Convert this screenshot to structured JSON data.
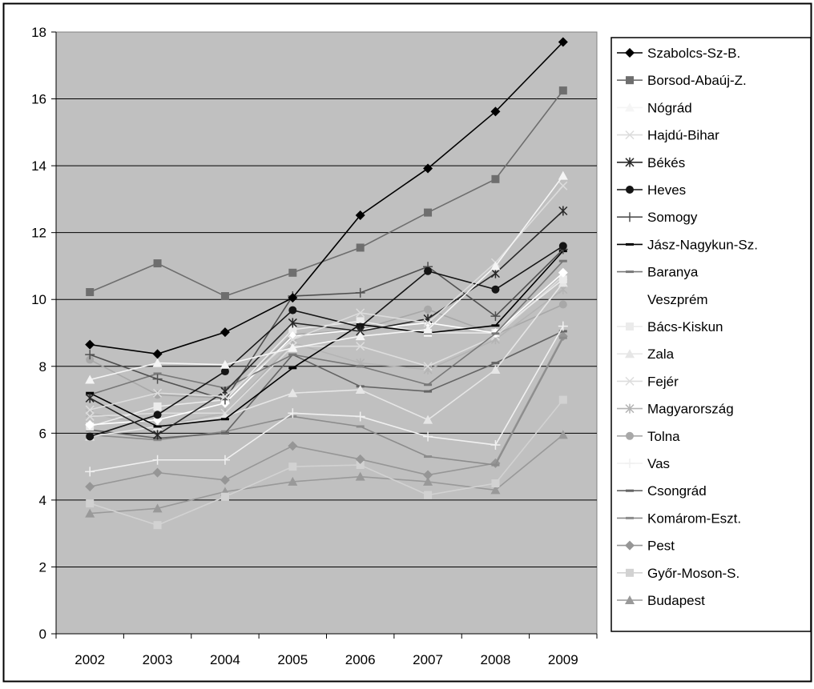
{
  "chart_data": {
    "type": "line",
    "title": "",
    "xlabel": "",
    "ylabel": "",
    "x": [
      "2002",
      "2003",
      "2004",
      "2005",
      "2006",
      "2007",
      "2008",
      "2009"
    ],
    "y_ticks": [
      "0",
      "2",
      "4",
      "6",
      "8",
      "10",
      "12",
      "14",
      "16",
      "18"
    ],
    "ylim": [
      0,
      18
    ],
    "grid": true,
    "legend": "right",
    "plot_background": "#c0c0c0",
    "series": [
      {
        "name": "Szabolcs-Sz-B.",
        "color": "#000000",
        "marker": "diamond",
        "values": [
          8.65,
          8.37,
          9.02,
          10.05,
          12.52,
          13.92,
          15.62,
          17.7
        ]
      },
      {
        "name": "Borsod-Abaúj-Z.",
        "color": "#6e6e6e",
        "marker": "square",
        "values": [
          10.22,
          11.08,
          10.1,
          10.8,
          11.55,
          12.6,
          13.6,
          16.25
        ]
      },
      {
        "name": "Nógrád",
        "color": "#f5f5f5",
        "marker": "triangle",
        "values": [
          7.6,
          8.1,
          8.05,
          8.55,
          8.9,
          9.1,
          11.0,
          13.7
        ]
      },
      {
        "name": "Hajdú-Bihar",
        "color": "#dcdcdc",
        "marker": "x",
        "values": [
          6.7,
          7.2,
          7.1,
          8.8,
          9.6,
          9.3,
          11.1,
          13.4
        ]
      },
      {
        "name": "Békés",
        "color": "#282828",
        "marker": "star",
        "values": [
          7.05,
          5.95,
          7.25,
          9.3,
          9.05,
          9.42,
          10.78,
          12.65
        ]
      },
      {
        "name": "Heves",
        "color": "#141414",
        "marker": "circle",
        "values": [
          5.9,
          6.55,
          7.85,
          9.68,
          9.18,
          10.85,
          10.3,
          11.6
        ]
      },
      {
        "name": "Somogy",
        "color": "#505050",
        "marker": "plus",
        "values": [
          8.35,
          7.62,
          7.0,
          10.1,
          10.2,
          10.98,
          9.5,
          11.5
        ]
      },
      {
        "name": "Jász-Nagykun-Sz.",
        "color": "#000000",
        "marker": "dash",
        "values": [
          7.2,
          6.2,
          6.42,
          7.95,
          9.25,
          9.0,
          9.22,
          11.45
        ]
      },
      {
        "name": "Baranya",
        "color": "#787878",
        "marker": "dash",
        "values": [
          7.15,
          7.78,
          7.35,
          8.35,
          8.0,
          7.45,
          8.98,
          11.15
        ]
      },
      {
        "name": "Veszprém",
        "color": "#ffffff",
        "marker": "diamond",
        "values": [
          6.25,
          6.4,
          6.9,
          8.9,
          9.1,
          9.3,
          9.0,
          10.8
        ]
      },
      {
        "name": "Bács-Kiskun",
        "color": "#ebebeb",
        "marker": "square",
        "values": [
          6.2,
          6.8,
          7.0,
          9.1,
          9.35,
          9.0,
          9.0,
          10.6
        ]
      },
      {
        "name": "Zala",
        "color": "#e6e6e6",
        "marker": "triangle",
        "values": [
          5.9,
          6.2,
          6.5,
          7.2,
          7.3,
          6.4,
          7.9,
          10.5
        ]
      },
      {
        "name": "Fejér",
        "color": "#dddddd",
        "marker": "x",
        "values": [
          6.5,
          6.6,
          6.6,
          8.6,
          8.6,
          8.0,
          8.9,
          10.7
        ]
      },
      {
        "name": "Magyarország",
        "color": "#b4b4b4",
        "marker": "star",
        "values": [
          6.6,
          6.2,
          6.6,
          8.7,
          8.1,
          7.9,
          8.8,
          10.3
        ]
      },
      {
        "name": "Tolna",
        "color": "#a8a8a8",
        "marker": "circle",
        "values": [
          8.2,
          7.15,
          7.05,
          8.95,
          9.1,
          9.7,
          8.95,
          9.85
        ]
      },
      {
        "name": "Vas",
        "color": "#f0f0f0",
        "marker": "plus",
        "values": [
          4.85,
          5.2,
          5.2,
          6.6,
          6.5,
          5.9,
          5.65,
          9.2
        ]
      },
      {
        "name": "Csongrád",
        "color": "#646464",
        "marker": "dash",
        "values": [
          6.1,
          5.85,
          6.0,
          8.35,
          7.4,
          7.25,
          8.1,
          9.05
        ]
      },
      {
        "name": "Komárom-Eszt.",
        "color": "#8c8c8c",
        "marker": "dash",
        "values": [
          5.95,
          5.8,
          6.05,
          6.5,
          6.2,
          5.3,
          5.05,
          8.85
        ]
      },
      {
        "name": "Pest",
        "color": "#969696",
        "marker": "diamond",
        "values": [
          4.4,
          4.82,
          4.6,
          5.62,
          5.22,
          4.75,
          5.1,
          8.9
        ]
      },
      {
        "name": "Győr-Moson-S.",
        "color": "#d2d2d2",
        "marker": "square",
        "values": [
          3.9,
          3.25,
          4.1,
          5.0,
          5.05,
          4.15,
          4.5,
          7.0
        ]
      },
      {
        "name": "Budapest",
        "color": "#999999",
        "marker": "triangle",
        "values": [
          3.6,
          3.75,
          4.25,
          4.55,
          4.7,
          4.55,
          4.3,
          5.95
        ]
      }
    ]
  }
}
